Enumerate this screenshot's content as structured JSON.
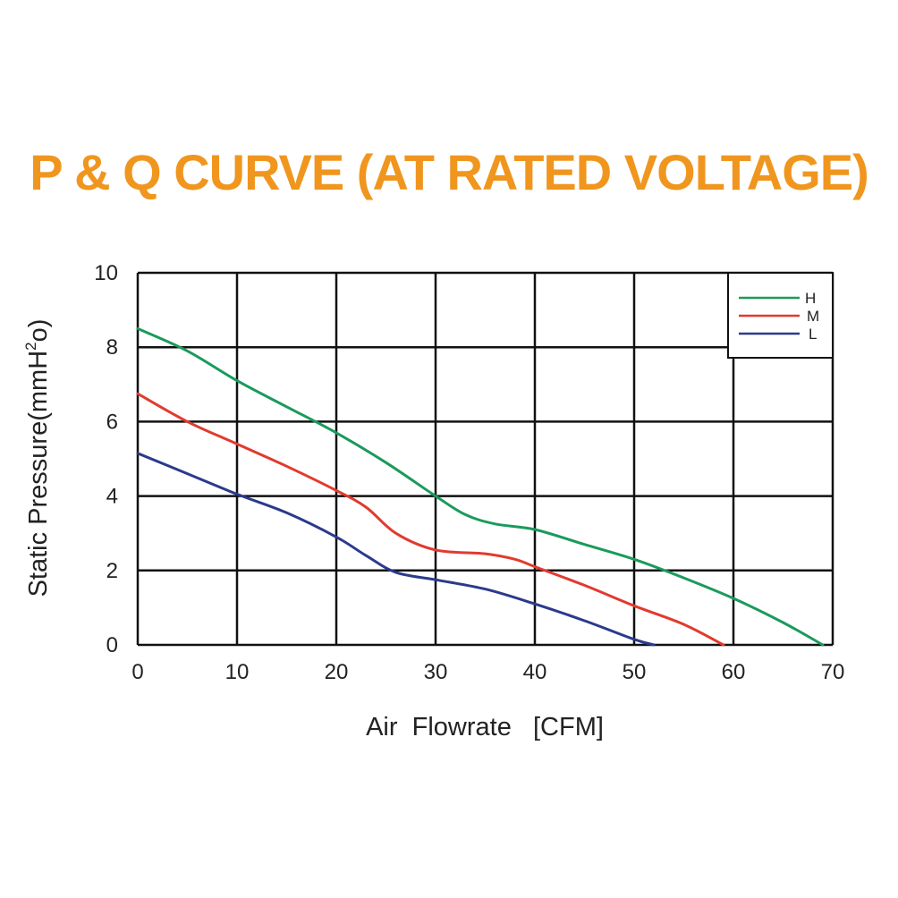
{
  "chart_data": {
    "type": "line",
    "title": "P & Q CURVE (AT RATED VOLTAGE)",
    "xlabel": "Air  Flowrate   [CFM]",
    "ylabel_base": "Static Pressure(mmH",
    "ylabel_sup": "2",
    "ylabel_end": "o)",
    "xlim": [
      0,
      70
    ],
    "ylim": [
      0,
      10
    ],
    "xticks": [
      0,
      10,
      20,
      30,
      40,
      50,
      60,
      70
    ],
    "yticks": [
      0,
      2,
      4,
      6,
      8,
      10
    ],
    "grid": true,
    "legend_position": "top-right",
    "series": [
      {
        "name": "H",
        "color": "#1a9a5c",
        "points": [
          [
            0,
            8.5
          ],
          [
            5,
            7.9
          ],
          [
            10,
            7.1
          ],
          [
            15,
            6.4
          ],
          [
            20,
            5.7
          ],
          [
            25,
            4.9
          ],
          [
            30,
            4.0
          ],
          [
            33,
            3.5
          ],
          [
            36,
            3.25
          ],
          [
            40,
            3.1
          ],
          [
            45,
            2.7
          ],
          [
            50,
            2.3
          ],
          [
            55,
            1.8
          ],
          [
            60,
            1.25
          ],
          [
            65,
            0.6
          ],
          [
            69,
            0.0
          ]
        ]
      },
      {
        "name": "M",
        "color": "#e23a2e",
        "points": [
          [
            0,
            6.75
          ],
          [
            5,
            6.0
          ],
          [
            10,
            5.4
          ],
          [
            15,
            4.8
          ],
          [
            20,
            4.15
          ],
          [
            23,
            3.7
          ],
          [
            26,
            3.0
          ],
          [
            30,
            2.55
          ],
          [
            35,
            2.45
          ],
          [
            38,
            2.3
          ],
          [
            40,
            2.1
          ],
          [
            45,
            1.6
          ],
          [
            50,
            1.05
          ],
          [
            55,
            0.55
          ],
          [
            59,
            0.0
          ]
        ]
      },
      {
        "name": "L",
        "color": "#2b3a8c",
        "points": [
          [
            0,
            5.15
          ],
          [
            5,
            4.6
          ],
          [
            10,
            4.05
          ],
          [
            15,
            3.55
          ],
          [
            20,
            2.9
          ],
          [
            23,
            2.4
          ],
          [
            26,
            1.95
          ],
          [
            30,
            1.75
          ],
          [
            35,
            1.5
          ],
          [
            40,
            1.1
          ],
          [
            45,
            0.65
          ],
          [
            50,
            0.15
          ],
          [
            52,
            0.0
          ]
        ]
      }
    ]
  },
  "colors": {
    "title": "#f0961e",
    "grid": "#111111",
    "background": "#ffffff"
  }
}
